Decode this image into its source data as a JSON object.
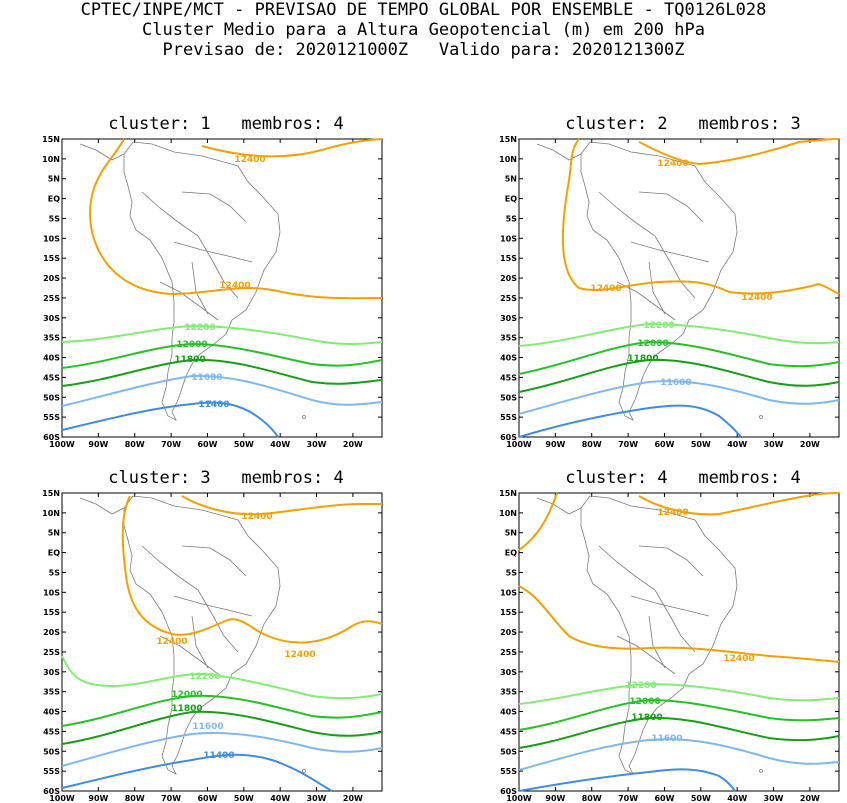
{
  "header": {
    "line1": "CPTEC/INPE/MCT - PREVISAO DE TEMPO GLOBAL POR ENSEMBLE - TQ0126L028",
    "line2": "Cluster Medio para a Altura Geopotencial (m) em 200 hPa",
    "line3": "Previsao de: 2020121000Z   Valido para: 2020121300Z"
  },
  "axes": {
    "lat_labels": [
      "15N",
      "10N",
      "5N",
      "EQ",
      "5S",
      "10S",
      "15S",
      "20S",
      "25S",
      "30S",
      "35S",
      "40S",
      "45S",
      "50S",
      "55S",
      "60S"
    ],
    "lon_labels": [
      "100W",
      "90W",
      "80W",
      "70W",
      "60W",
      "50W",
      "40W",
      "30W",
      "20W"
    ]
  },
  "colors": {
    "c12400": "#f5a000",
    "c12200": "#80ee70",
    "c12000": "#22c322",
    "c11800": "#14a014",
    "c11600": "#7db8f0",
    "c11400": "#3c8ce6",
    "coast": "#7a7a7a"
  },
  "panels": [
    {
      "title": "cluster: 1   membros: 4",
      "labels": {
        "l12400a": "12400",
        "l12400b": "12400",
        "l12200": "12200",
        "l12000": "12000",
        "l11800": "11800",
        "l11600": "11600",
        "l11400": "11400"
      }
    },
    {
      "title": "cluster: 2   membros: 3",
      "labels": {
        "l12400a": "12400",
        "l12400b": "12400",
        "l12400c": "12400",
        "l12200": "12200",
        "l12000": "12000",
        "l11800": "11800",
        "l11600": "11600"
      }
    },
    {
      "title": "cluster: 3   membros: 4",
      "labels": {
        "l12400a": "12400",
        "l12400b": "12400",
        "l12400c": "12400",
        "l12200": "12200",
        "l12000": "12000",
        "l11800": "11800",
        "l11600": "11600",
        "l11400": "11400"
      }
    },
    {
      "title": "cluster: 4   membros: 4",
      "labels": {
        "l12400a": "12400",
        "l12400b": "12400",
        "l12200": "12200",
        "l12000": "12000",
        "l11800": "11800",
        "l11600": "11600"
      }
    }
  ]
}
